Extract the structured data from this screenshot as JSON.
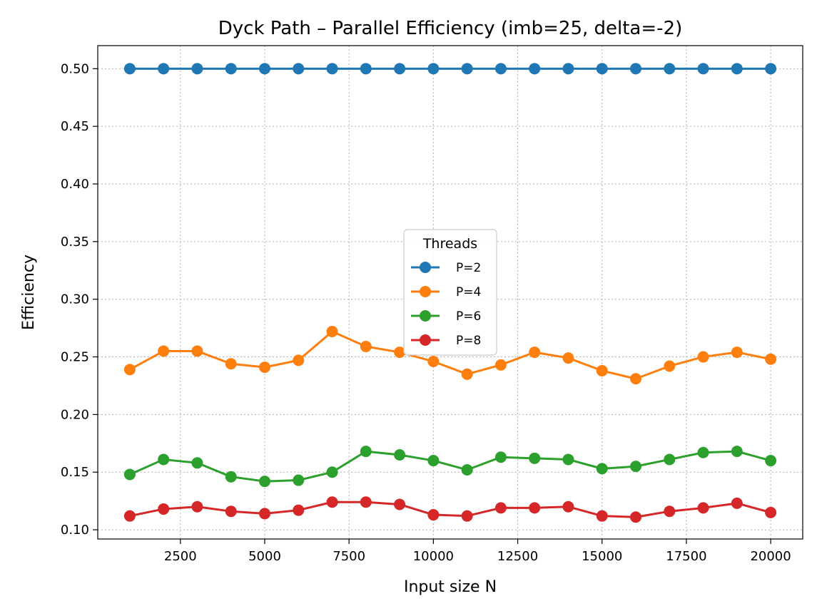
{
  "chart_data": {
    "type": "line",
    "title": "Dyck Path – Parallel Efficiency (imb=25, delta=-2)",
    "xlabel": "Input size N",
    "ylabel": "Efficiency",
    "xlim": [
      50,
      20950
    ],
    "ylim": [
      0.092,
      0.52
    ],
    "xticks": [
      2500,
      5000,
      7500,
      10000,
      12500,
      15000,
      17500,
      20000
    ],
    "yticks": [
      0.1,
      0.15,
      0.2,
      0.25,
      0.3,
      0.35,
      0.4,
      0.45,
      0.5
    ],
    "grid": true,
    "legend": {
      "title": "Threads",
      "placement": "center"
    },
    "x": [
      1000,
      2000,
      3000,
      4000,
      5000,
      6000,
      7000,
      8000,
      9000,
      10000,
      11000,
      12000,
      13000,
      14000,
      15000,
      16000,
      17000,
      18000,
      19000,
      20000
    ],
    "series": [
      {
        "name": "P=2",
        "color": "#1f77b4",
        "values": [
          0.5,
          0.5,
          0.5,
          0.5,
          0.5,
          0.5,
          0.5,
          0.5,
          0.5,
          0.5,
          0.5,
          0.5,
          0.5,
          0.5,
          0.5,
          0.5,
          0.5,
          0.5,
          0.5,
          0.5
        ]
      },
      {
        "name": "P=4",
        "color": "#ff7f0e",
        "values": [
          0.239,
          0.255,
          0.255,
          0.244,
          0.241,
          0.247,
          0.272,
          0.259,
          0.254,
          0.246,
          0.235,
          0.243,
          0.254,
          0.249,
          0.238,
          0.231,
          0.242,
          0.25,
          0.254,
          0.248
        ]
      },
      {
        "name": "P=6",
        "color": "#2ca02c",
        "values": [
          0.148,
          0.161,
          0.158,
          0.146,
          0.142,
          0.143,
          0.15,
          0.168,
          0.165,
          0.16,
          0.152,
          0.163,
          0.162,
          0.161,
          0.153,
          0.155,
          0.161,
          0.167,
          0.168,
          0.16
        ]
      },
      {
        "name": "P=8",
        "color": "#d62728",
        "values": [
          0.112,
          0.118,
          0.12,
          0.116,
          0.114,
          0.117,
          0.124,
          0.124,
          0.122,
          0.113,
          0.112,
          0.119,
          0.119,
          0.12,
          0.112,
          0.111,
          0.116,
          0.119,
          0.123,
          0.115
        ]
      }
    ]
  }
}
